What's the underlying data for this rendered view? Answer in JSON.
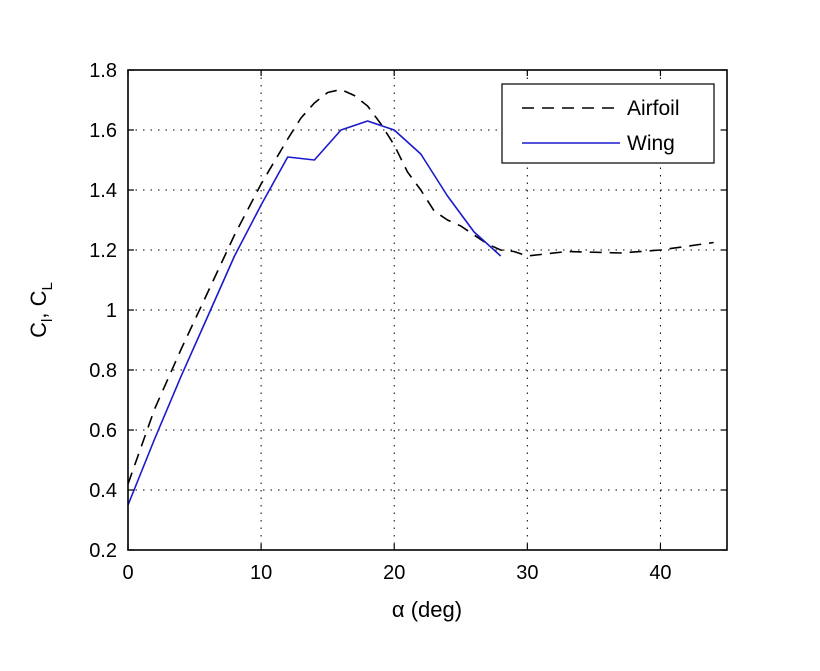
{
  "chart_data": {
    "type": "line",
    "xlabel": "α (deg)",
    "ylabel": {
      "main1": "C",
      "sub1": "l",
      "sep": ", ",
      "main2": "C",
      "sub2": "L"
    },
    "xlim": [
      0,
      45
    ],
    "ylim": [
      0.2,
      1.8
    ],
    "xticks": [
      0,
      10,
      20,
      30,
      40
    ],
    "yticks": [
      0.2,
      0.4,
      0.6,
      0.8,
      1,
      1.2,
      1.4,
      1.6,
      1.8
    ],
    "grid": true,
    "grid_style": "dotted",
    "legend_position": "top-right",
    "series": [
      {
        "name": "Airfoil",
        "color": "#000000",
        "style": "dashed",
        "x": [
          0,
          2,
          4,
          6,
          8,
          10,
          12,
          13,
          14,
          15,
          16,
          17,
          18,
          19,
          20,
          21,
          22,
          23,
          24,
          25,
          26,
          27,
          28,
          29,
          30,
          33,
          37,
          40,
          44
        ],
        "y": [
          0.42,
          0.67,
          0.87,
          1.06,
          1.25,
          1.42,
          1.57,
          1.64,
          1.69,
          1.725,
          1.735,
          1.715,
          1.68,
          1.62,
          1.55,
          1.46,
          1.4,
          1.33,
          1.3,
          1.28,
          1.25,
          1.22,
          1.2,
          1.195,
          1.18,
          1.195,
          1.19,
          1.2,
          1.225
        ]
      },
      {
        "name": "Wing",
        "color": "#1a1acc",
        "style": "solid",
        "x": [
          0,
          2,
          4,
          6,
          8,
          10,
          12,
          14,
          16,
          18,
          20,
          22,
          24,
          26,
          28
        ],
        "y": [
          0.35,
          0.57,
          0.78,
          0.98,
          1.18,
          1.35,
          1.51,
          1.5,
          1.6,
          1.63,
          1.6,
          1.52,
          1.38,
          1.26,
          1.18
        ]
      }
    ]
  }
}
